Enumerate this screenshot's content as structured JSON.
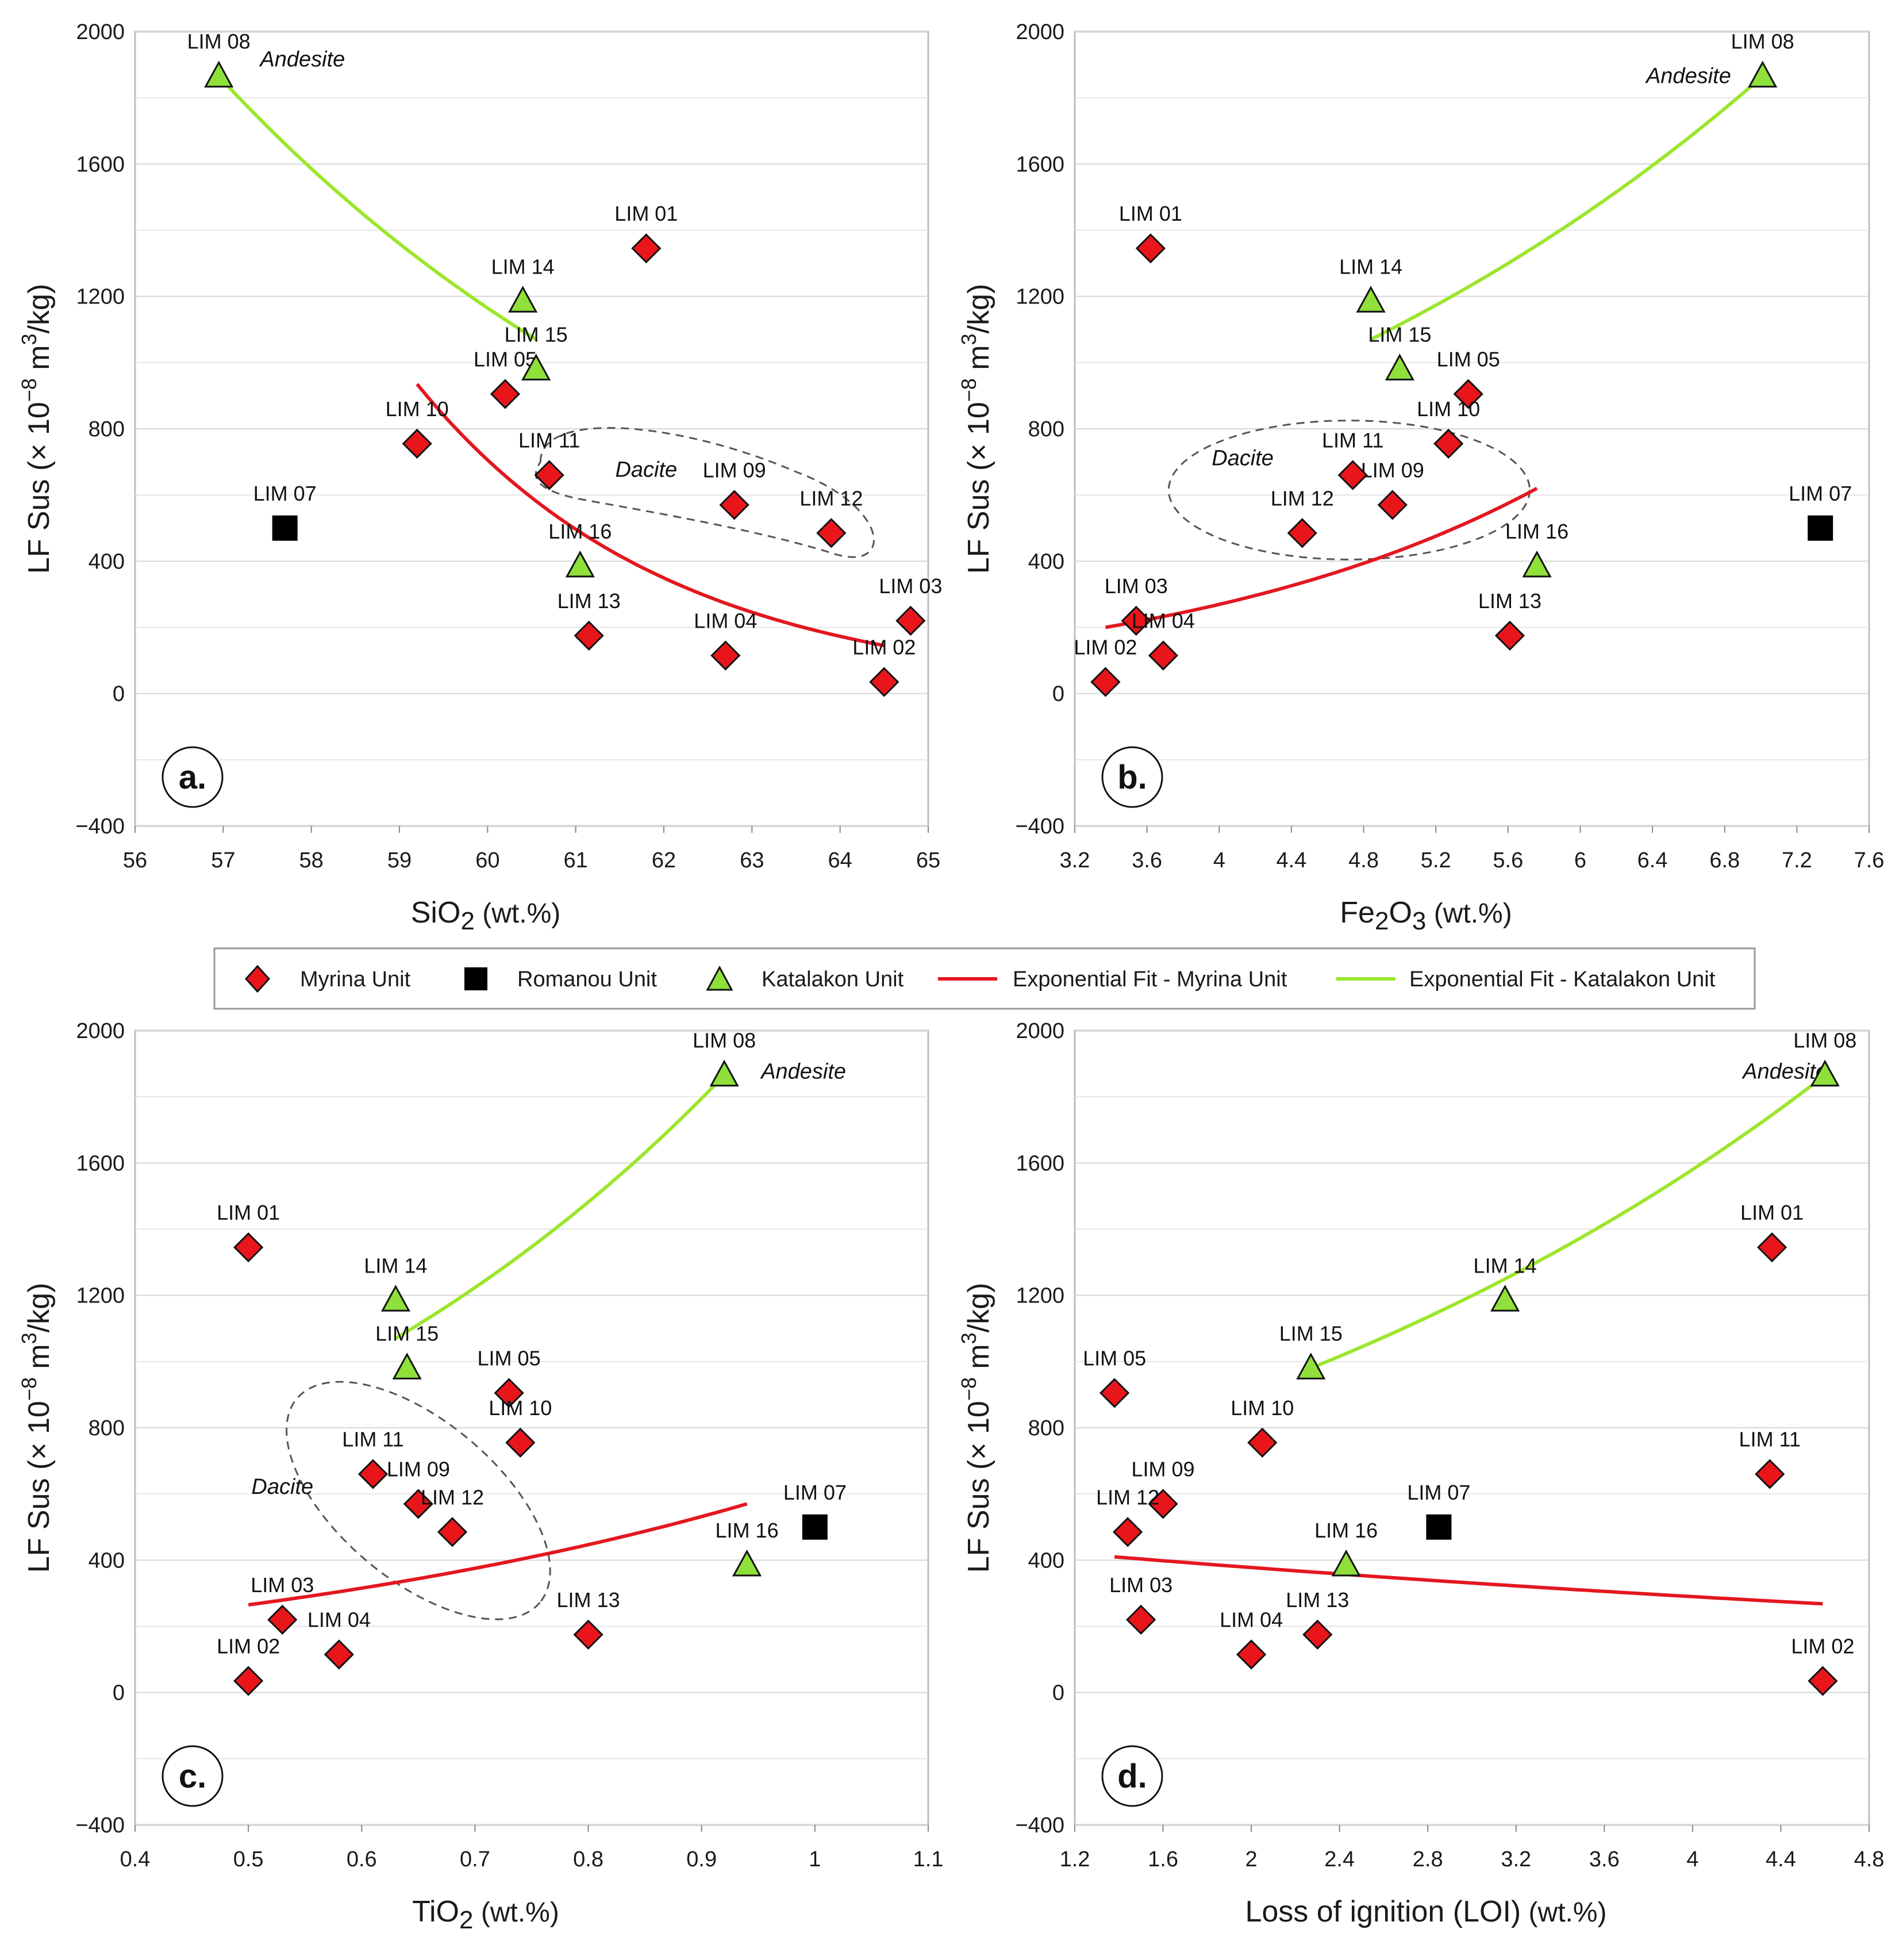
{
  "legend": {
    "myrina": "Myrina Unit",
    "romanou": "Romanou Unit",
    "katalakon": "Katalakon Unit",
    "fit_myrina": "Exponential Fit - Myrina Unit",
    "fit_katalakon": "Exponential Fit - Katalakon Unit"
  },
  "colors": {
    "myrina_fill": "#e8161b",
    "romanou_fill": "#000000",
    "katalakon_fill": "#8fe03a",
    "fit_myrina": "#e3171f",
    "fit_katalakon": "#9ce62c"
  },
  "chart_data": [
    {
      "type": "scatter",
      "panel": "a.",
      "xlabel_main": "SiO",
      "xlabel_sub": "2",
      "xlabel_unit": " (wt.%)",
      "ylabel_main": "LF Sus (× 10",
      "ylabel_sup": "−8",
      "ylabel_mid": " m",
      "ylabel_sup2": "3",
      "ylabel_end": "/kg)",
      "xlim": [
        56,
        65
      ],
      "ylim": [
        -400,
        2000
      ],
      "xticks": [
        "56",
        "57",
        "58",
        "59",
        "60",
        "61",
        "62",
        "63",
        "64",
        "65"
      ],
      "yticks": [
        "−400",
        "0",
        "400",
        "800",
        "1200",
        "1600",
        "2000"
      ],
      "annotations": [
        {
          "text": "Andesite",
          "x": 57.9,
          "y": 1895
        },
        {
          "text": "Dacite",
          "x": 61.8,
          "y": 655
        }
      ],
      "points": [
        {
          "label": "LIM 01",
          "unit": "myrina",
          "x": 61.8,
          "y": 1345
        },
        {
          "label": "LIM 02",
          "unit": "myrina",
          "x": 64.5,
          "y": 35
        },
        {
          "label": "LIM 03",
          "unit": "myrina",
          "x": 64.8,
          "y": 220
        },
        {
          "label": "LIM 04",
          "unit": "myrina",
          "x": 62.7,
          "y": 115
        },
        {
          "label": "LIM 05",
          "unit": "myrina",
          "x": 60.2,
          "y": 905
        },
        {
          "label": "LIM 07",
          "unit": "romanou",
          "x": 57.7,
          "y": 500
        },
        {
          "label": "LIM 08",
          "unit": "katalakon",
          "x": 56.95,
          "y": 1865
        },
        {
          "label": "LIM 09",
          "unit": "myrina",
          "x": 62.8,
          "y": 570
        },
        {
          "label": "LIM 10",
          "unit": "myrina",
          "x": 59.2,
          "y": 755
        },
        {
          "label": "LIM 11",
          "unit": "myrina",
          "x": 60.7,
          "y": 660
        },
        {
          "label": "LIM 12",
          "unit": "myrina",
          "x": 63.9,
          "y": 485
        },
        {
          "label": "LIM 13",
          "unit": "myrina",
          "x": 61.15,
          "y": 175
        },
        {
          "label": "LIM 14",
          "unit": "katalakon",
          "x": 60.4,
          "y": 1185
        },
        {
          "label": "LIM 15",
          "unit": "katalakon",
          "x": 60.55,
          "y": 980
        },
        {
          "label": "LIM 16",
          "unit": "katalakon",
          "x": 61.05,
          "y": 385
        }
      ],
      "fits": [
        {
          "unit": "myrina",
          "x": [
            59.2,
            64.5
          ],
          "y": [
            935,
            145
          ]
        },
        {
          "unit": "katalakon",
          "x": [
            56.95,
            60.55
          ],
          "y": [
            1865,
            1070
          ]
        }
      ]
    },
    {
      "type": "scatter",
      "panel": "b.",
      "xlabel_main": "Fe",
      "xlabel_sub": "2",
      "xlabel_mid": "O",
      "xlabel_sub2": "3",
      "xlabel_unit": " (wt.%)",
      "ylabel_main": "LF Sus (× 10",
      "ylabel_sup": "−8",
      "ylabel_mid": " m",
      "ylabel_sup2": "3",
      "ylabel_end": "/kg)",
      "xlim": [
        3.2,
        7.6
      ],
      "ylim": [
        -400,
        2000
      ],
      "xticks": [
        "3.2",
        "3.6",
        "4",
        "4.4",
        "4.8",
        "5.2",
        "5.6",
        "6",
        "6.4",
        "6.8",
        "7.2",
        "7.6"
      ],
      "yticks": [
        "−400",
        "0",
        "400",
        "800",
        "1200",
        "1600",
        "2000"
      ],
      "annotations": [
        {
          "text": "Andesite",
          "x": 6.6,
          "y": 1845
        },
        {
          "text": "Dacite",
          "x": 4.13,
          "y": 690
        }
      ],
      "points": [
        {
          "label": "LIM 01",
          "unit": "myrina",
          "x": 3.62,
          "y": 1345
        },
        {
          "label": "LIM 02",
          "unit": "myrina",
          "x": 3.37,
          "y": 35
        },
        {
          "label": "LIM 03",
          "unit": "myrina",
          "x": 3.54,
          "y": 220
        },
        {
          "label": "LIM 04",
          "unit": "myrina",
          "x": 3.69,
          "y": 115
        },
        {
          "label": "LIM 05",
          "unit": "myrina",
          "x": 5.38,
          "y": 905
        },
        {
          "label": "LIM 07",
          "unit": "romanou",
          "x": 7.33,
          "y": 500
        },
        {
          "label": "LIM 08",
          "unit": "katalakon",
          "x": 7.01,
          "y": 1865
        },
        {
          "label": "LIM 09",
          "unit": "myrina",
          "x": 4.96,
          "y": 570
        },
        {
          "label": "LIM 10",
          "unit": "myrina",
          "x": 5.27,
          "y": 755
        },
        {
          "label": "LIM 11",
          "unit": "myrina",
          "x": 4.74,
          "y": 660
        },
        {
          "label": "LIM 12",
          "unit": "myrina",
          "x": 4.46,
          "y": 485
        },
        {
          "label": "LIM 13",
          "unit": "myrina",
          "x": 5.61,
          "y": 175
        },
        {
          "label": "LIM 14",
          "unit": "katalakon",
          "x": 4.84,
          "y": 1185
        },
        {
          "label": "LIM 15",
          "unit": "katalakon",
          "x": 5.0,
          "y": 980
        },
        {
          "label": "LIM 16",
          "unit": "katalakon",
          "x": 5.76,
          "y": 385
        }
      ],
      "fits": [
        {
          "unit": "myrina",
          "x": [
            3.37,
            5.76
          ],
          "y": [
            200,
            620
          ]
        },
        {
          "unit": "katalakon",
          "x": [
            4.84,
            7.01
          ],
          "y": [
            1070,
            1865
          ]
        }
      ]
    },
    {
      "type": "scatter",
      "panel": "c.",
      "xlabel_main": "TiO",
      "xlabel_sub": "2",
      "xlabel_unit": " (wt.%)",
      "ylabel_main": "LF Sus (× 10",
      "ylabel_sup": "−8",
      "ylabel_mid": " m",
      "ylabel_sup2": "3",
      "ylabel_end": "/kg)",
      "xlim": [
        0.4,
        1.1
      ],
      "ylim": [
        -400,
        2000
      ],
      "xticks": [
        "0.4",
        "0.5",
        "0.6",
        "0.7",
        "0.8",
        "0.9",
        "1",
        "1.1"
      ],
      "yticks": [
        "−400",
        "0",
        "400",
        "800",
        "1200",
        "1600",
        "2000"
      ],
      "annotations": [
        {
          "text": "Andesite",
          "x": 0.99,
          "y": 1855
        },
        {
          "text": "Dacite",
          "x": 0.53,
          "y": 600
        }
      ],
      "points": [
        {
          "label": "LIM 01",
          "unit": "myrina",
          "x": 0.5,
          "y": 1345
        },
        {
          "label": "LIM 02",
          "unit": "myrina",
          "x": 0.5,
          "y": 35
        },
        {
          "label": "LIM 03",
          "unit": "myrina",
          "x": 0.53,
          "y": 220
        },
        {
          "label": "LIM 04",
          "unit": "myrina",
          "x": 0.58,
          "y": 115
        },
        {
          "label": "LIM 05",
          "unit": "myrina",
          "x": 0.73,
          "y": 905
        },
        {
          "label": "LIM 07",
          "unit": "romanou",
          "x": 1.0,
          "y": 500
        },
        {
          "label": "LIM 08",
          "unit": "katalakon",
          "x": 0.92,
          "y": 1865
        },
        {
          "label": "LIM 09",
          "unit": "myrina",
          "x": 0.65,
          "y": 570
        },
        {
          "label": "LIM 10",
          "unit": "myrina",
          "x": 0.74,
          "y": 755
        },
        {
          "label": "LIM 11",
          "unit": "myrina",
          "x": 0.61,
          "y": 660
        },
        {
          "label": "LIM 12",
          "unit": "myrina",
          "x": 0.68,
          "y": 485
        },
        {
          "label": "LIM 13",
          "unit": "myrina",
          "x": 0.8,
          "y": 175
        },
        {
          "label": "LIM 14",
          "unit": "katalakon",
          "x": 0.63,
          "y": 1185
        },
        {
          "label": "LIM 15",
          "unit": "katalakon",
          "x": 0.64,
          "y": 980
        },
        {
          "label": "LIM 16",
          "unit": "katalakon",
          "x": 0.94,
          "y": 385
        }
      ],
      "fits": [
        {
          "unit": "myrina",
          "x": [
            0.5,
            0.94
          ],
          "y": [
            265,
            570
          ]
        },
        {
          "unit": "katalakon",
          "x": [
            0.63,
            0.92
          ],
          "y": [
            1070,
            1865
          ]
        }
      ]
    },
    {
      "type": "scatter",
      "panel": "d.",
      "xlabel_main": "Loss of ignition (LOI)",
      "xlabel_unit": " (wt.%)",
      "ylabel_main": "LF Sus (× 10",
      "ylabel_sup": "−8",
      "ylabel_mid": " m",
      "ylabel_sup2": "3",
      "ylabel_end": "/kg)",
      "xlim": [
        1.2,
        4.8
      ],
      "ylim": [
        -400,
        2000
      ],
      "xticks": [
        "1.2",
        "1.6",
        "2",
        "2.4",
        "2.8",
        "3.2",
        "3.6",
        "4",
        "4.4",
        "4.8"
      ],
      "yticks": [
        "−400",
        "0",
        "400",
        "800",
        "1200",
        "1600",
        "2000"
      ],
      "annotations": [
        {
          "text": "Andesite",
          "x": 4.42,
          "y": 1855
        }
      ],
      "points": [
        {
          "label": "LIM 01",
          "unit": "myrina",
          "x": 4.36,
          "y": 1345
        },
        {
          "label": "LIM 02",
          "unit": "myrina",
          "x": 4.59,
          "y": 35
        },
        {
          "label": "LIM 03",
          "unit": "myrina",
          "x": 1.5,
          "y": 220
        },
        {
          "label": "LIM 04",
          "unit": "myrina",
          "x": 2.0,
          "y": 115
        },
        {
          "label": "LIM 05",
          "unit": "myrina",
          "x": 1.38,
          "y": 905
        },
        {
          "label": "LIM 07",
          "unit": "romanou",
          "x": 2.85,
          "y": 500
        },
        {
          "label": "LIM 08",
          "unit": "katalakon",
          "x": 4.6,
          "y": 1865
        },
        {
          "label": "LIM 09",
          "unit": "myrina",
          "x": 1.6,
          "y": 570
        },
        {
          "label": "LIM 10",
          "unit": "myrina",
          "x": 2.05,
          "y": 755
        },
        {
          "label": "LIM 11",
          "unit": "myrina",
          "x": 4.35,
          "y": 660
        },
        {
          "label": "LIM 12",
          "display": "LIM 12",
          "unit": "myrina",
          "x": 1.44,
          "y": 485
        },
        {
          "label": "LIM 13",
          "unit": "myrina",
          "x": 2.3,
          "y": 175
        },
        {
          "label": "LIM 14",
          "unit": "katalakon",
          "x": 3.15,
          "y": 1185
        },
        {
          "label": "LIM 15",
          "unit": "katalakon",
          "x": 2.27,
          "y": 980
        },
        {
          "label": "LIM 16",
          "unit": "katalakon",
          "x": 2.43,
          "y": 385
        }
      ],
      "fits": [
        {
          "unit": "myrina",
          "x": [
            1.38,
            4.59
          ],
          "y": [
            410,
            268
          ]
        },
        {
          "unit": "katalakon",
          "x": [
            2.27,
            4.6
          ],
          "y": [
            980,
            1865
          ]
        }
      ]
    }
  ]
}
